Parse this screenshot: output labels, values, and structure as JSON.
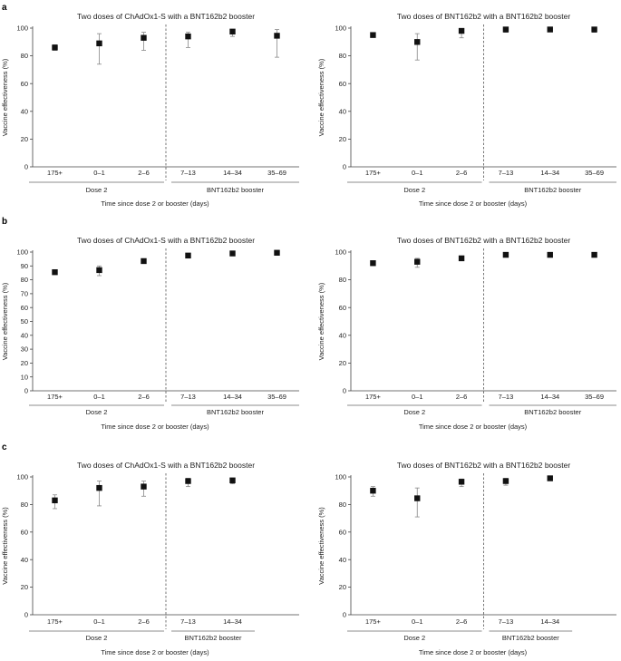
{
  "panels": [
    {
      "letter": "a",
      "charts": [
        0,
        1
      ]
    },
    {
      "letter": "b",
      "charts": [
        2,
        3
      ]
    },
    {
      "letter": "c",
      "charts": [
        4,
        5
      ]
    }
  ],
  "chart_data": [
    {
      "type": "scatter",
      "title": "Two doses of ChAdOx1-S with a BNT162b2 booster",
      "ylabel": "Vaccine effectiveness (%)",
      "xlabel": "Time since dose 2 or booster (days)",
      "ylim": [
        0,
        100
      ],
      "yticks": [
        0,
        20,
        40,
        60,
        80,
        100
      ],
      "categories": [
        "175+",
        "0–1",
        "2–6",
        "7–13",
        "14–34",
        "35–69"
      ],
      "values": [
        86,
        89,
        93,
        94,
        97.5,
        94.5
      ],
      "ci_low": [
        84,
        74,
        84,
        86,
        94,
        79
      ],
      "ci_high": [
        88,
        96,
        97,
        97,
        99,
        99
      ],
      "groups": [
        {
          "label": "Dose 2",
          "span": [
            0,
            2
          ]
        },
        {
          "label": "BNT162b2 booster",
          "span": [
            3,
            5
          ]
        }
      ],
      "divider_after": 2
    },
    {
      "type": "scatter",
      "title": "Two doses of BNT162b2 with a BNT162b2 booster",
      "ylabel": "Vaccine effectiveness (%)",
      "xlabel": "Time since dose 2 or booster (days)",
      "ylim": [
        0,
        100
      ],
      "yticks": [
        0,
        20,
        40,
        60,
        80,
        100
      ],
      "categories": [
        "175+",
        "0–1",
        "2–6",
        "7–13",
        "14–34",
        "35–69"
      ],
      "values": [
        95,
        90,
        98,
        99,
        99,
        99
      ],
      "ci_low": [
        94,
        77,
        93,
        97,
        98,
        97
      ],
      "ci_high": [
        96,
        96,
        99,
        100,
        99.5,
        100
      ],
      "groups": [
        {
          "label": "Dose 2",
          "span": [
            0,
            2
          ]
        },
        {
          "label": "BNT162b2 booster",
          "span": [
            3,
            5
          ]
        }
      ],
      "divider_after": 2
    },
    {
      "type": "scatter",
      "title": "Two doses of ChAdOx1-S with a BNT162b2 booster",
      "ylabel": "Vaccine effectiveness (%)",
      "xlabel": "Time since dose 2 or booster (days)",
      "ylim": [
        0,
        100
      ],
      "yticks": [
        0,
        10,
        20,
        30,
        40,
        50,
        60,
        70,
        80,
        90,
        100
      ],
      "categories": [
        "175+",
        "0–1",
        "2–6",
        "7–13",
        "14–34",
        "35–69"
      ],
      "values": [
        85.5,
        87,
        93.5,
        97.5,
        99,
        99.5
      ],
      "ci_low": [
        84.5,
        83,
        92,
        96.5,
        98.5,
        98.5
      ],
      "ci_high": [
        86.5,
        90,
        94.5,
        98.5,
        99.5,
        100
      ],
      "groups": [
        {
          "label": "Dose 2",
          "span": [
            0,
            2
          ]
        },
        {
          "label": "BNT162b2 booster",
          "span": [
            3,
            5
          ]
        }
      ],
      "divider_after": 2
    },
    {
      "type": "scatter",
      "title": "Two doses of BNT162b2 with a BNT162b2 booster",
      "ylabel": "Vaccine effectiveness (%)",
      "xlabel": "Time since dose 2 or booster (days)",
      "ylim": [
        0,
        100
      ],
      "yticks": [
        0,
        20,
        40,
        60,
        80,
        100
      ],
      "categories": [
        "175+",
        "0–1",
        "2–6",
        "7–13",
        "14–34",
        "35–69"
      ],
      "values": [
        92,
        93,
        95.5,
        98,
        98,
        98
      ],
      "ci_low": [
        91,
        89,
        95,
        97.5,
        97.5,
        97
      ],
      "ci_high": [
        93,
        95.5,
        96.5,
        98.5,
        98.5,
        99
      ],
      "groups": [
        {
          "label": "Dose 2",
          "span": [
            0,
            2
          ]
        },
        {
          "label": "BNT162b2 booster",
          "span": [
            3,
            5
          ]
        }
      ],
      "divider_after": 2
    },
    {
      "type": "scatter",
      "title": "Two doses of ChAdOx1-S with a BNT162b2 booster",
      "ylabel": "Vaccine effectiveness (%)",
      "xlabel": "Time since dose 2 or booster (days)",
      "ylim": [
        0,
        100
      ],
      "yticks": [
        0,
        20,
        40,
        60,
        80,
        100
      ],
      "categories": [
        "175+",
        "0–1",
        "2–6",
        "7–13",
        "14–34"
      ],
      "values": [
        83,
        92,
        93,
        97,
        97.5
      ],
      "ci_low": [
        77,
        79,
        86,
        93,
        95
      ],
      "ci_high": [
        87,
        97,
        97,
        99,
        99
      ],
      "groups": [
        {
          "label": "Dose 2",
          "span": [
            0,
            2
          ]
        },
        {
          "label": "BNT162b2 booster",
          "span": [
            3,
            4
          ]
        }
      ],
      "divider_after": 2
    },
    {
      "type": "scatter",
      "title": "Two doses of BNT162b2 with a BNT162b2 booster",
      "ylabel": "Vaccine effectiveness (%)",
      "xlabel": "Time since dose 2 or booster (days)",
      "ylim": [
        0,
        100
      ],
      "yticks": [
        0,
        20,
        40,
        60,
        80,
        100
      ],
      "categories": [
        "175+",
        "0–1",
        "2–6",
        "7–13",
        "14–34"
      ],
      "values": [
        90,
        84.5,
        96.5,
        97,
        99
      ],
      "ci_low": [
        86,
        71,
        93,
        94,
        98
      ],
      "ci_high": [
        93,
        92,
        98.5,
        99,
        99.5
      ],
      "groups": [
        {
          "label": "Dose 2",
          "span": [
            0,
            2
          ]
        },
        {
          "label": "BNT162b2 booster",
          "span": [
            3,
            4
          ]
        }
      ],
      "divider_after": 2
    }
  ]
}
